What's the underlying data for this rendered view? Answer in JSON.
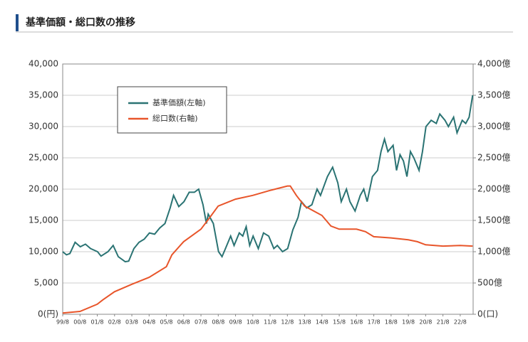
{
  "chart_data": {
    "type": "line",
    "title": "基準価額・総口数の推移",
    "xlim": [
      1999.583,
      2023.33
    ],
    "xticks": [
      {
        "value": 1999.583,
        "label": "99/8"
      },
      {
        "value": 2000.583,
        "label": "00/8"
      },
      {
        "value": 2001.583,
        "label": "01/8"
      },
      {
        "value": 2002.583,
        "label": "02/8"
      },
      {
        "value": 2003.583,
        "label": "03/8"
      },
      {
        "value": 2004.583,
        "label": "04/8"
      },
      {
        "value": 2005.583,
        "label": "05/8"
      },
      {
        "value": 2006.583,
        "label": "06/8"
      },
      {
        "value": 2007.583,
        "label": "07/8"
      },
      {
        "value": 2008.583,
        "label": "08/8"
      },
      {
        "value": 2009.583,
        "label": "09/8"
      },
      {
        "value": 2010.583,
        "label": "10/8"
      },
      {
        "value": 2011.583,
        "label": "11/8"
      },
      {
        "value": 2012.583,
        "label": "12/8"
      },
      {
        "value": 2013.583,
        "label": "13/8"
      },
      {
        "value": 2014.583,
        "label": "14/8"
      },
      {
        "value": 2015.583,
        "label": "15/8"
      },
      {
        "value": 2016.583,
        "label": "16/8"
      },
      {
        "value": 2017.583,
        "label": "17/8"
      },
      {
        "value": 2018.583,
        "label": "18/8"
      },
      {
        "value": 2019.583,
        "label": "19/8"
      },
      {
        "value": 2020.583,
        "label": "20/8"
      },
      {
        "value": 2021.583,
        "label": "21/8"
      },
      {
        "value": 2022.583,
        "label": "22/8"
      }
    ],
    "ylim": [
      0,
      40000
    ],
    "yticks": [
      {
        "value": 0,
        "label": "0(円)"
      },
      {
        "value": 5000,
        "label": "5,000"
      },
      {
        "value": 10000,
        "label": "10,000"
      },
      {
        "value": 15000,
        "label": "15,000"
      },
      {
        "value": 20000,
        "label": "20,000"
      },
      {
        "value": 25000,
        "label": "25,000"
      },
      {
        "value": 30000,
        "label": "30,000"
      },
      {
        "value": 35000,
        "label": "35,000"
      },
      {
        "value": 40000,
        "label": "40,000"
      }
    ],
    "y2lim": [
      0,
      4000
    ],
    "y2ticks": [
      {
        "value": 0,
        "label": "0(口)"
      },
      {
        "value": 500,
        "label": "500億"
      },
      {
        "value": 1000,
        "label": "1,000億"
      },
      {
        "value": 1500,
        "label": "1,500億"
      },
      {
        "value": 2000,
        "label": "2,000億"
      },
      {
        "value": 2500,
        "label": "2,500億"
      },
      {
        "value": 3000,
        "label": "3,000億"
      },
      {
        "value": 3500,
        "label": "3,500億"
      },
      {
        "value": 4000,
        "label": "4,000億"
      }
    ],
    "grid": true,
    "series": [
      {
        "name": "基準価額(左軸)",
        "color": "#2a7373",
        "x": [
          1999.58,
          1999.8,
          2000.0,
          2000.3,
          2000.6,
          2000.9,
          2001.2,
          2001.6,
          2001.8,
          2002.2,
          2002.5,
          2002.8,
          2003.2,
          2003.4,
          2003.7,
          2004.0,
          2004.3,
          2004.6,
          2004.9,
          2005.2,
          2005.5,
          2005.8,
          2006.0,
          2006.3,
          2006.6,
          2006.9,
          2007.2,
          2007.45,
          2007.7,
          2007.9,
          2008.0,
          2008.3,
          2008.6,
          2008.8,
          2009.0,
          2009.3,
          2009.5,
          2009.8,
          2010.0,
          2010.2,
          2010.4,
          2010.6,
          2010.9,
          2011.2,
          2011.5,
          2011.8,
          2012.0,
          2012.3,
          2012.6,
          2012.9,
          2013.2,
          2013.4,
          2013.7,
          2014.0,
          2014.3,
          2014.5,
          2014.9,
          2015.2,
          2015.5,
          2015.7,
          2016.0,
          2016.2,
          2016.5,
          2016.8,
          2017.0,
          2017.2,
          2017.5,
          2017.8,
          2018.0,
          2018.2,
          2018.4,
          2018.7,
          2018.9,
          2019.1,
          2019.3,
          2019.5,
          2019.7,
          2019.9,
          2020.2,
          2020.4,
          2020.6,
          2020.9,
          2021.2,
          2021.4,
          2021.7,
          2021.9,
          2022.2,
          2022.4,
          2022.7,
          2022.9,
          2023.1,
          2023.3
        ],
        "values": [
          10000,
          9500,
          9700,
          11500,
          10800,
          11200,
          10500,
          10000,
          9300,
          10000,
          11000,
          9200,
          8400,
          8500,
          10500,
          11500,
          12000,
          13000,
          12800,
          13800,
          14500,
          17000,
          19000,
          17200,
          18000,
          19500,
          19500,
          20000,
          17500,
          14500,
          16000,
          14500,
          10000,
          9200,
          10500,
          12500,
          11000,
          13000,
          12500,
          14000,
          11000,
          12500,
          10500,
          13000,
          12500,
          10500,
          11000,
          10000,
          10500,
          13500,
          15500,
          18000,
          17000,
          17500,
          20000,
          19000,
          22000,
          23500,
          21000,
          18000,
          20000,
          18000,
          16500,
          19000,
          20000,
          18000,
          22000,
          23000,
          26000,
          28000,
          26000,
          27000,
          23000,
          25500,
          24500,
          22000,
          26000,
          25000,
          23000,
          26000,
          30000,
          31000,
          30500,
          32000,
          31000,
          30000,
          31500,
          29000,
          31000,
          30500,
          31500,
          35000
        ]
      },
      {
        "name": "総口数(右軸)",
        "color": "#e8552a",
        "axis": "y2",
        "x": [
          1999.58,
          2000.58,
          2001.58,
          2001.9,
          2002.58,
          2003.58,
          2004.58,
          2005.58,
          2005.9,
          2006.58,
          2007.58,
          2008.1,
          2008.58,
          2009.58,
          2010.58,
          2011.58,
          2012.58,
          2012.75,
          2013.1,
          2013.58,
          2014.58,
          2015.1,
          2015.58,
          2016.58,
          2017.1,
          2017.58,
          2018.58,
          2019.58,
          2020.1,
          2020.58,
          2021.58,
          2022.58,
          2023.3
        ],
        "values": [
          20,
          45,
          160,
          230,
          360,
          480,
          590,
          760,
          950,
          1160,
          1360,
          1550,
          1730,
          1840,
          1900,
          1980,
          2050,
          2050,
          1900,
          1730,
          1580,
          1410,
          1360,
          1360,
          1320,
          1240,
          1220,
          1190,
          1160,
          1110,
          1090,
          1100,
          1090
        ]
      }
    ]
  }
}
